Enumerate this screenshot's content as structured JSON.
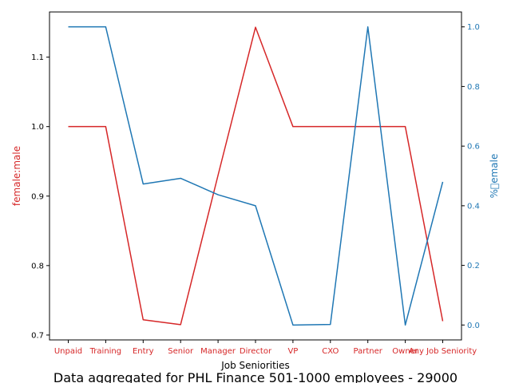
{
  "chart_data": {
    "type": "line",
    "xlabel": "Job Seniorities",
    "caption": "Data aggregated for PHL Finance 501-1000 employees - 29000",
    "categories": [
      "Unpaid",
      "Training",
      "Entry",
      "Senior",
      "Manager",
      "Director",
      "VP",
      "CXO",
      "Partner",
      "Owner",
      "Any Job Seniority"
    ],
    "left_axis": {
      "label": "female:male",
      "color": "#d62728",
      "ylim": [
        0.693,
        1.165
      ],
      "ticks": [
        0.7,
        0.8,
        0.9,
        1.0,
        1.1
      ],
      "tick_labels": [
        "0.7",
        "0.8",
        "0.9",
        "1.0",
        "1.1"
      ]
    },
    "right_axis": {
      "label": "%\u0000emale",
      "color": "#1f77b4",
      "ylim": [
        -0.05,
        1.05
      ],
      "ticks": [
        0.0,
        0.2,
        0.4,
        0.6,
        0.8,
        1.0
      ],
      "tick_labels": [
        "0.0",
        "0.2",
        "0.4",
        "0.6",
        "0.8",
        "1.0"
      ]
    },
    "series": [
      {
        "axis": "left",
        "color": "#d62728",
        "values": [
          1.0,
          1.0,
          0.722,
          0.715,
          0.93,
          1.143,
          1.0,
          1.0,
          1.0,
          1.0,
          0.72
        ]
      },
      {
        "axis": "right",
        "color": "#1f77b4",
        "values": [
          1.0,
          1.0,
          0.473,
          0.492,
          0.437,
          0.4,
          0.0,
          0.002,
          1.0,
          0.0,
          0.48
        ]
      }
    ]
  }
}
